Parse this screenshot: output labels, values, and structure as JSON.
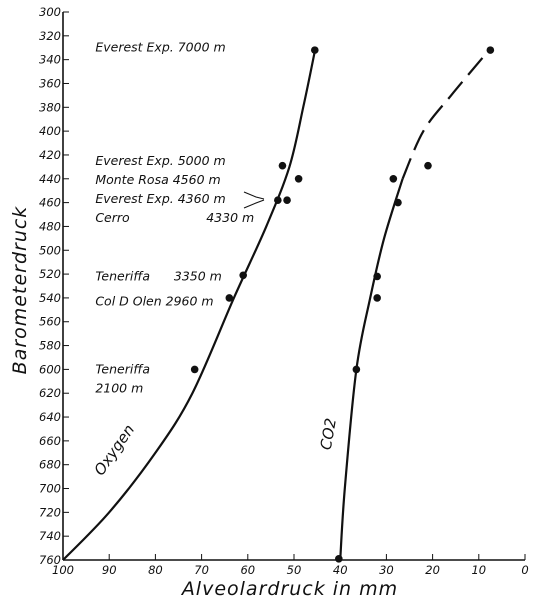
{
  "chart_data": {
    "type": "scatter",
    "xlabel": "Alveolardruck in mm",
    "ylabel": "Barometerdruck",
    "xlim": [
      100,
      0
    ],
    "ylim": [
      760,
      300
    ],
    "x_ticks": [
      100,
      90,
      80,
      70,
      60,
      50,
      40,
      30,
      20,
      10,
      0
    ],
    "y_ticks": [
      300,
      320,
      340,
      360,
      380,
      400,
      420,
      440,
      460,
      480,
      500,
      520,
      540,
      560,
      580,
      600,
      620,
      640,
      660,
      680,
      700,
      720,
      740,
      760
    ],
    "grid": false,
    "series": [
      {
        "name": "Oxygen",
        "curve": [
          {
            "x": 100,
            "y": 760
          },
          {
            "x": 90,
            "y": 720
          },
          {
            "x": 80,
            "y": 670
          },
          {
            "x": 72,
            "y": 620
          },
          {
            "x": 63,
            "y": 540
          },
          {
            "x": 56,
            "y": 480
          },
          {
            "x": 51,
            "y": 430
          },
          {
            "x": 48,
            "y": 380
          },
          {
            "x": 45.5,
            "y": 333
          }
        ],
        "points": [
          {
            "x": 71.5,
            "y": 600
          },
          {
            "x": 64,
            "y": 540
          },
          {
            "x": 61,
            "y": 521
          },
          {
            "x": 53.5,
            "y": 458
          },
          {
            "x": 51.5,
            "y": 458
          },
          {
            "x": 49,
            "y": 440
          },
          {
            "x": 52.5,
            "y": 429
          },
          {
            "x": 45.5,
            "y": 332
          }
        ]
      },
      {
        "name": "CO2",
        "curve": [
          {
            "x": 40,
            "y": 760
          },
          {
            "x": 39,
            "y": 700
          },
          {
            "x": 36.5,
            "y": 600
          },
          {
            "x": 33.5,
            "y": 540
          },
          {
            "x": 30.5,
            "y": 490
          },
          {
            "x": 26.5,
            "y": 440
          }
        ],
        "curve_dashed": [
          {
            "x": 26.5,
            "y": 440
          },
          {
            "x": 22,
            "y": 400
          },
          {
            "x": 16,
            "y": 370
          },
          {
            "x": 8,
            "y": 333
          }
        ],
        "points": [
          {
            "x": 40.3,
            "y": 759
          },
          {
            "x": 36.5,
            "y": 600
          },
          {
            "x": 32,
            "y": 540
          },
          {
            "x": 32,
            "y": 522
          },
          {
            "x": 27.5,
            "y": 460
          },
          {
            "x": 28.5,
            "y": 440
          },
          {
            "x": 21,
            "y": 429
          },
          {
            "x": 7.5,
            "y": 332
          }
        ]
      }
    ],
    "annotations": [
      {
        "text": "Everest Exp. 7000 m",
        "x": 93,
        "y": 330
      },
      {
        "text": "Everest Exp. 5000 m",
        "x": 93,
        "y": 425
      },
      {
        "text": "Monte Rosa 4560 m",
        "x": 93,
        "y": 441
      },
      {
        "text": "Everest Exp. 4360 m",
        "x": 93,
        "y": 457
      },
      {
        "text": "Cerro",
        "x": 93,
        "y": 473
      },
      {
        "text": "4330 m",
        "x": 69,
        "y": 473
      },
      {
        "text": "Teneriffa",
        "x": 93,
        "y": 522
      },
      {
        "text": "3350 m",
        "x": 76,
        "y": 522
      },
      {
        "text": "Col D Olen 2960 m",
        "x": 93,
        "y": 543
      },
      {
        "text": "Teneriffa",
        "x": 93,
        "y": 600
      },
      {
        "text": "2100 m",
        "x": 93,
        "y": 616
      }
    ],
    "curve_labels": [
      {
        "text": "Oxygen",
        "x": 88,
        "y": 670
      },
      {
        "text": "CO2",
        "x": 41.5,
        "y": 655
      }
    ]
  }
}
